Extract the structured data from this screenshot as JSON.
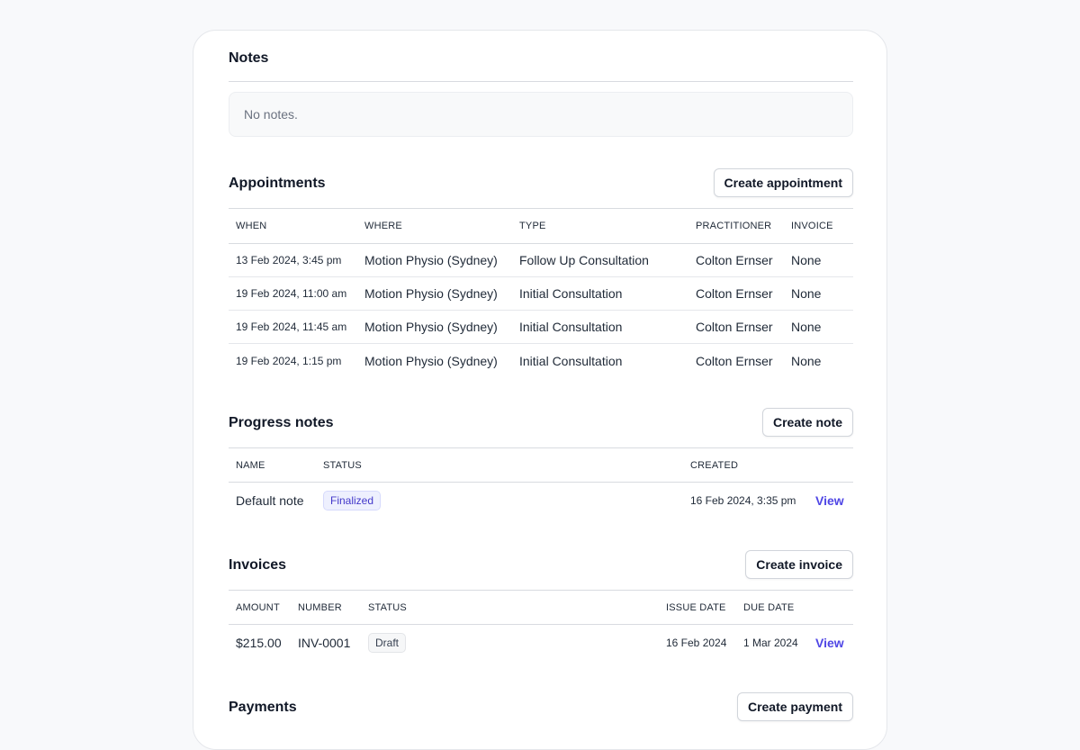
{
  "notes": {
    "title": "Notes",
    "empty": "No notes."
  },
  "appointments": {
    "title": "Appointments",
    "button": "Create appointment",
    "headers": [
      "WHEN",
      "WHERE",
      "TYPE",
      "PRACTITIONER",
      "INVOICE"
    ],
    "rows": [
      [
        "13 Feb 2024, 3:45 pm",
        "Motion Physio (Sydney)",
        "Follow Up Consultation",
        "Colton Ernser",
        "None"
      ],
      [
        "19 Feb 2024, 11:00 am",
        "Motion Physio (Sydney)",
        "Initial Consultation",
        "Colton Ernser",
        "None"
      ],
      [
        "19 Feb 2024, 11:45 am",
        "Motion Physio (Sydney)",
        "Initial Consultation",
        "Colton Ernser",
        "None"
      ],
      [
        "19 Feb 2024, 1:15 pm",
        "Motion Physio (Sydney)",
        "Initial Consultation",
        "Colton Ernser",
        "None"
      ]
    ]
  },
  "progress_notes": {
    "title": "Progress notes",
    "button": "Create note",
    "headers": [
      "NAME",
      "STATUS",
      "CREATED"
    ],
    "rows": [
      {
        "name": "Default note",
        "status": "Finalized",
        "created": "16 Feb 2024, 3:35 pm",
        "action": "View"
      }
    ]
  },
  "invoices": {
    "title": "Invoices",
    "button": "Create invoice",
    "headers": [
      "AMOUNT",
      "NUMBER",
      "STATUS",
      "ISSUE DATE",
      "DUE DATE"
    ],
    "rows": [
      {
        "amount": "$215.00",
        "number": "INV-0001",
        "status": "Draft",
        "issue": "16 Feb 2024",
        "due": "1 Mar 2024",
        "action": "View"
      }
    ]
  },
  "payments": {
    "title": "Payments",
    "button": "Create payment"
  },
  "colors": {
    "accent": "#4f46e5",
    "badge_finalized_bg": "#eef0fe"
  }
}
